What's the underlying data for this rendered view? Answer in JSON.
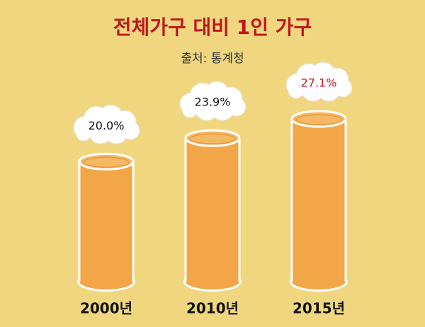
{
  "chart_data": {
    "type": "bar",
    "title": "전체가구 대비 1인 가구",
    "subtitle": "출처: 통계청",
    "categories": [
      "2000년",
      "2010년",
      "2015년"
    ],
    "values": [
      20.0,
      23.9,
      27.1
    ],
    "value_labels": [
      "20.0%",
      "23.9%",
      "27.1%"
    ],
    "value_label_colors": [
      "#111111",
      "#111111",
      "#d2141c"
    ],
    "color": "#f2a648",
    "background": "#f0d77f"
  }
}
